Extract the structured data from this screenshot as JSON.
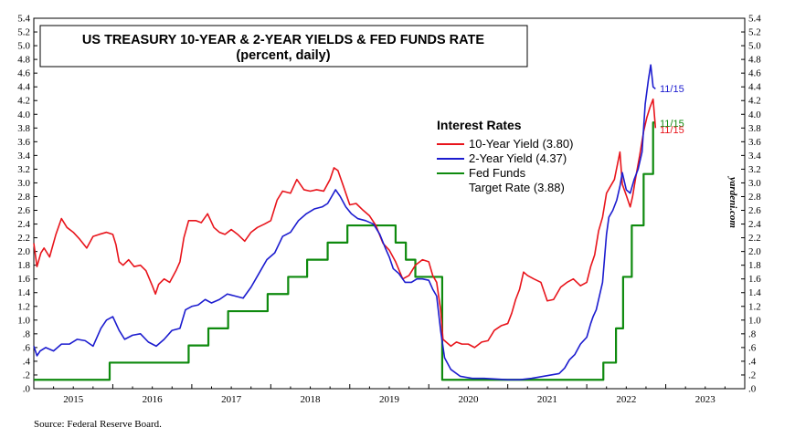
{
  "chart_data": {
    "type": "line",
    "title": "US TREASURY 10-YEAR & 2-YEAR YIELDS & FED FUNDS RATE",
    "subtitle": "(percent, daily)",
    "legend_title": "Interest Rates",
    "legend_position": "upper-middle",
    "ylim": [
      0,
      5.4
    ],
    "y_ticks": [
      ".0",
      ".2",
      ".4",
      ".6",
      ".8",
      "1.0",
      "1.2",
      "1.4",
      "1.6",
      "1.8",
      "2.0",
      "2.2",
      "2.4",
      "2.6",
      "2.8",
      "3.0",
      "3.2",
      "3.4",
      "3.6",
      "3.8",
      "4.0",
      "4.2",
      "4.4",
      "4.6",
      "4.8",
      "5.0",
      "5.2",
      "5.4"
    ],
    "x_ticks": [
      "2015",
      "2016",
      "2017",
      "2018",
      "2019",
      "2020",
      "2021",
      "2022",
      "2023"
    ],
    "xlim": [
      2015.0,
      2024.0
    ],
    "source": "Source: Federal Reserve Board.",
    "watermark": "yardeni.com",
    "series": [
      {
        "name": "10-Year Yield (3.80)",
        "color": "#e8141b",
        "end_label": "11/15",
        "x": [
          2015.0,
          2015.04,
          2015.09,
          2015.13,
          2015.2,
          2015.28,
          2015.35,
          2015.42,
          2015.5,
          2015.58,
          2015.67,
          2015.75,
          2015.83,
          2015.92,
          2016.0,
          2016.04,
          2016.08,
          2016.13,
          2016.2,
          2016.27,
          2016.35,
          2016.42,
          2016.5,
          2016.54,
          2016.58,
          2016.65,
          2016.72,
          2016.8,
          2016.85,
          2016.9,
          2016.96,
          2017.05,
          2017.12,
          2017.2,
          2017.28,
          2017.35,
          2017.42,
          2017.5,
          2017.58,
          2017.67,
          2017.75,
          2017.83,
          2017.92,
          2018.0,
          2018.08,
          2018.15,
          2018.25,
          2018.33,
          2018.42,
          2018.5,
          2018.58,
          2018.67,
          2018.75,
          2018.8,
          2018.85,
          2018.92,
          2019.0,
          2019.08,
          2019.17,
          2019.25,
          2019.33,
          2019.42,
          2019.5,
          2019.58,
          2019.67,
          2019.75,
          2019.83,
          2019.92,
          2020.0,
          2020.05,
          2020.1,
          2020.15,
          2020.18,
          2020.22,
          2020.28,
          2020.35,
          2020.42,
          2020.5,
          2020.58,
          2020.67,
          2020.75,
          2020.83,
          2020.92,
          2021.0,
          2021.05,
          2021.1,
          2021.15,
          2021.2,
          2021.25,
          2021.33,
          2021.42,
          2021.5,
          2021.58,
          2021.67,
          2021.75,
          2021.83,
          2021.92,
          2022.0,
          2022.05,
          2022.1,
          2022.15,
          2022.2,
          2022.25,
          2022.3,
          2022.35,
          2022.42,
          2022.45,
          2022.5,
          2022.55,
          2022.58,
          2022.62,
          2022.67,
          2022.72,
          2022.76,
          2022.8,
          2022.84,
          2022.87
        ],
        "values": [
          2.12,
          1.78,
          1.98,
          2.05,
          1.92,
          2.25,
          2.48,
          2.35,
          2.28,
          2.18,
          2.05,
          2.22,
          2.25,
          2.28,
          2.25,
          2.1,
          1.85,
          1.8,
          1.88,
          1.78,
          1.8,
          1.72,
          1.5,
          1.38,
          1.52,
          1.6,
          1.55,
          1.72,
          1.85,
          2.2,
          2.45,
          2.45,
          2.42,
          2.55,
          2.35,
          2.28,
          2.25,
          2.32,
          2.25,
          2.15,
          2.28,
          2.35,
          2.4,
          2.45,
          2.75,
          2.88,
          2.85,
          3.05,
          2.9,
          2.88,
          2.9,
          2.88,
          3.05,
          3.22,
          3.18,
          2.95,
          2.68,
          2.7,
          2.6,
          2.52,
          2.38,
          2.12,
          2.02,
          1.85,
          1.6,
          1.65,
          1.8,
          1.88,
          1.85,
          1.65,
          1.55,
          1.15,
          0.72,
          0.68,
          0.62,
          0.68,
          0.65,
          0.65,
          0.6,
          0.68,
          0.7,
          0.85,
          0.92,
          0.95,
          1.1,
          1.3,
          1.45,
          1.7,
          1.65,
          1.6,
          1.55,
          1.28,
          1.3,
          1.48,
          1.55,
          1.6,
          1.5,
          1.55,
          1.78,
          1.95,
          2.3,
          2.5,
          2.85,
          2.95,
          3.05,
          3.45,
          2.98,
          2.82,
          2.65,
          2.8,
          3.08,
          3.4,
          3.75,
          3.95,
          4.1,
          4.22,
          3.8
        ]
      },
      {
        "name": "2-Year Yield (4.37)",
        "color": "#1c1ccf",
        "end_label": "11/15",
        "x": [
          2015.0,
          2015.04,
          2015.08,
          2015.15,
          2015.25,
          2015.35,
          2015.45,
          2015.55,
          2015.65,
          2015.75,
          2015.85,
          2015.92,
          2016.0,
          2016.08,
          2016.15,
          2016.25,
          2016.35,
          2016.45,
          2016.55,
          2016.65,
          2016.75,
          2016.85,
          2016.92,
          2017.0,
          2017.08,
          2017.17,
          2017.25,
          2017.35,
          2017.45,
          2017.55,
          2017.65,
          2017.75,
          2017.85,
          2017.95,
          2018.05,
          2018.15,
          2018.25,
          2018.35,
          2018.45,
          2018.55,
          2018.65,
          2018.72,
          2018.78,
          2018.82,
          2018.88,
          2018.95,
          2019.02,
          2019.1,
          2019.2,
          2019.3,
          2019.38,
          2019.45,
          2019.5,
          2019.55,
          2019.62,
          2019.7,
          2019.78,
          2019.85,
          2019.92,
          2020.0,
          2020.05,
          2020.1,
          2020.15,
          2020.2,
          2020.28,
          2020.4,
          2020.55,
          2020.7,
          2020.85,
          2021.0,
          2021.15,
          2021.3,
          2021.45,
          2021.55,
          2021.65,
          2021.72,
          2021.78,
          2021.85,
          2021.92,
          2022.0,
          2022.05,
          2022.08,
          2022.12,
          2022.15,
          2022.2,
          2022.25,
          2022.28,
          2022.33,
          2022.38,
          2022.42,
          2022.45,
          2022.5,
          2022.55,
          2022.6,
          2022.65,
          2022.7,
          2022.74,
          2022.78,
          2022.81,
          2022.84,
          2022.87
        ],
        "values": [
          0.62,
          0.48,
          0.55,
          0.6,
          0.55,
          0.65,
          0.65,
          0.72,
          0.7,
          0.62,
          0.88,
          1.0,
          1.05,
          0.85,
          0.72,
          0.78,
          0.8,
          0.68,
          0.62,
          0.72,
          0.85,
          0.88,
          1.15,
          1.2,
          1.22,
          1.3,
          1.25,
          1.3,
          1.38,
          1.35,
          1.32,
          1.48,
          1.68,
          1.88,
          1.98,
          2.22,
          2.28,
          2.45,
          2.55,
          2.62,
          2.65,
          2.7,
          2.82,
          2.9,
          2.8,
          2.65,
          2.55,
          2.48,
          2.45,
          2.4,
          2.25,
          2.05,
          1.92,
          1.75,
          1.68,
          1.55,
          1.55,
          1.6,
          1.6,
          1.58,
          1.45,
          1.35,
          0.85,
          0.45,
          0.28,
          0.18,
          0.15,
          0.15,
          0.14,
          0.13,
          0.13,
          0.15,
          0.18,
          0.2,
          0.22,
          0.3,
          0.42,
          0.5,
          0.65,
          0.75,
          0.95,
          1.05,
          1.15,
          1.3,
          1.55,
          2.25,
          2.5,
          2.6,
          2.75,
          2.95,
          3.15,
          2.9,
          2.85,
          3.05,
          3.2,
          3.45,
          4.15,
          4.5,
          4.72,
          4.4,
          4.37
        ]
      },
      {
        "name": "Fed Funds Target Rate (3.88)",
        "legend_lines": [
          "Fed Funds",
          "Target Rate (3.88)"
        ],
        "color": "#0e8a0e",
        "end_label": "11/15",
        "x": [
          2015.0,
          2015.96,
          2015.96,
          2016.96,
          2016.96,
          2017.21,
          2017.21,
          2017.46,
          2017.46,
          2017.96,
          2017.96,
          2018.22,
          2018.22,
          2018.46,
          2018.46,
          2018.72,
          2018.72,
          2018.97,
          2018.97,
          2019.58,
          2019.58,
          2019.71,
          2019.71,
          2019.83,
          2019.83,
          2020.17,
          2020.17,
          2022.21,
          2022.21,
          2022.37,
          2022.37,
          2022.46,
          2022.46,
          2022.57,
          2022.57,
          2022.72,
          2022.72,
          2022.84,
          2022.84,
          2022.87
        ],
        "values": [
          0.13,
          0.13,
          0.38,
          0.38,
          0.63,
          0.63,
          0.88,
          0.88,
          1.13,
          1.13,
          1.38,
          1.38,
          1.63,
          1.63,
          1.88,
          1.88,
          2.13,
          2.13,
          2.38,
          2.38,
          2.13,
          2.13,
          1.88,
          1.88,
          1.63,
          1.63,
          0.13,
          0.13,
          0.38,
          0.38,
          0.88,
          0.88,
          1.63,
          1.63,
          2.38,
          2.38,
          3.13,
          3.13,
          3.88,
          3.88
        ]
      }
    ]
  }
}
